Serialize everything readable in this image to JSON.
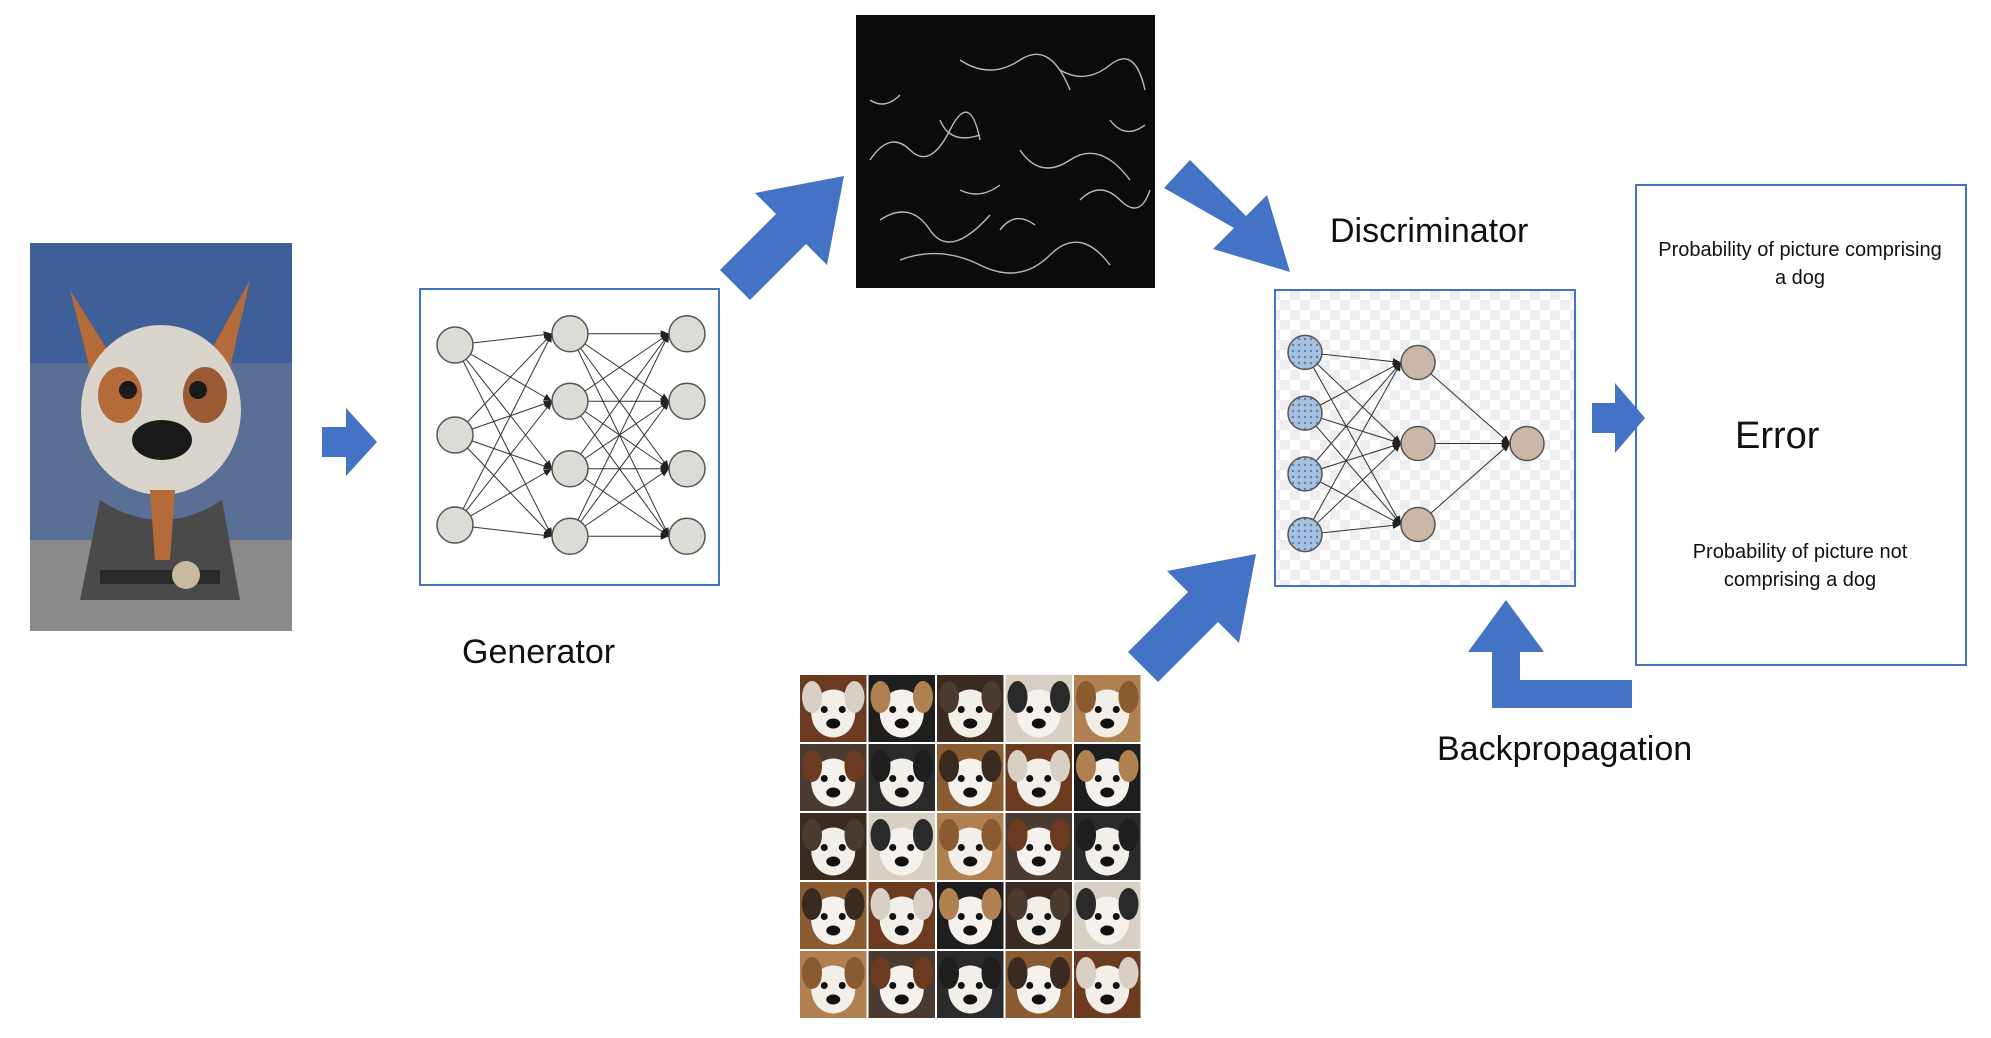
{
  "labels": {
    "generator": "Generator",
    "discriminator": "Discriminator",
    "error": "Error",
    "backpropagation": "Backpropagation",
    "prob_dog": "Probability of picture comprising a dog",
    "prob_not_dog": "Probability of picture not comprising a dog"
  },
  "colors": {
    "arrow": "#4472c4",
    "box_border": "#4472c4",
    "gen_node": "#dcdcd6",
    "disc_input_node": "#a9c1e0",
    "disc_node": "#cbb7a6"
  },
  "generator_net": {
    "layers": [
      3,
      4,
      4
    ]
  },
  "discriminator_net": {
    "layers": [
      4,
      3,
      1
    ]
  },
  "images": {
    "input_dog": "collage-dog-icon",
    "generated_noise": "edge-noise-image",
    "real_dogs_grid": "dog-faces-grid",
    "real_dogs_grid_size": [
      5,
      5
    ]
  }
}
